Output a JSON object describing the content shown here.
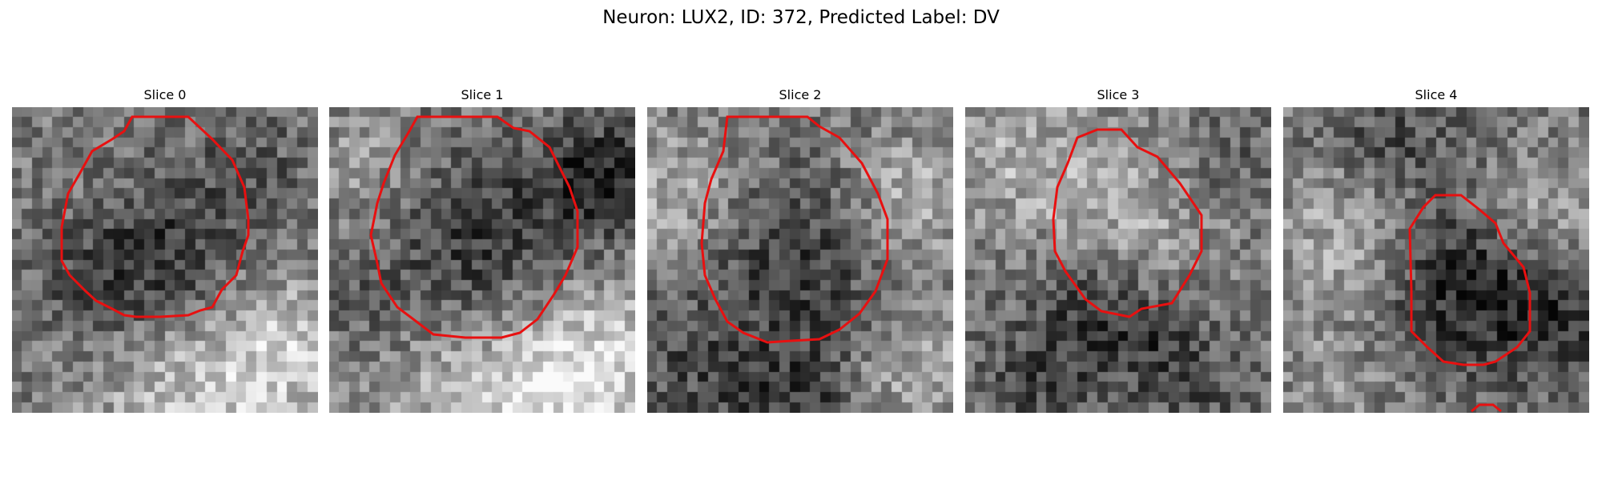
{
  "figure": {
    "title": "Neuron: LUX2, ID: 372, Predicted Label: DV"
  },
  "panels": [
    {
      "title": "Slice 0"
    },
    {
      "title": "Slice 1"
    },
    {
      "title": "Slice 2"
    },
    {
      "title": "Slice 3"
    },
    {
      "title": "Slice 4"
    }
  ],
  "colors": {
    "contour": "#e81010",
    "colormap": "grayscale"
  }
}
